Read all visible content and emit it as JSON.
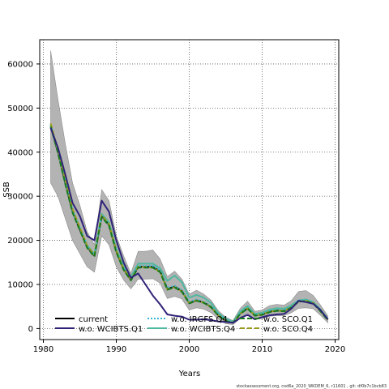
{
  "chart_data": {
    "type": "line",
    "xlabel": "Years",
    "ylabel": "SSB",
    "xlim": [
      1979.5,
      2020.5
    ],
    "ylim": [
      -2500,
      65500
    ],
    "xticks": [
      1980,
      1990,
      2000,
      2010,
      2020
    ],
    "yticks": [
      0,
      10000,
      20000,
      30000,
      40000,
      50000,
      60000
    ],
    "grid": true,
    "grid_style": "dotted",
    "legend_placement": "bottom-left",
    "x": [
      1981,
      1982,
      1983,
      1984,
      1985,
      1986,
      1987,
      1988,
      1989,
      1990,
      1991,
      1992,
      1993,
      1994,
      1995,
      1996,
      1997,
      1998,
      1999,
      2000,
      2001,
      2002,
      2003,
      2004,
      2005,
      2006,
      2007,
      2008,
      2009,
      2010,
      2011,
      2012,
      2013,
      2014,
      2015,
      2016,
      2017,
      2018,
      2019
    ],
    "confidence_band": {
      "upper": [
        63000,
        52000,
        42000,
        33000,
        28000,
        22000,
        19000,
        31500,
        29000,
        21000,
        16500,
        12500,
        17500,
        17500,
        17800,
        15800,
        11800,
        13000,
        11200,
        7800,
        8700,
        7800,
        6400,
        4000,
        2600,
        1800,
        4600,
        6200,
        3900,
        4200,
        5200,
        5500,
        5300,
        6300,
        8400,
        8600,
        7500,
        5300,
        2900
      ],
      "lower": [
        33000,
        30000,
        25000,
        20000,
        17000,
        14000,
        12800,
        21000,
        19000,
        14000,
        11000,
        9000,
        11200,
        11200,
        11300,
        10300,
        6800,
        7300,
        6700,
        4200,
        4700,
        4400,
        3600,
        2100,
        1100,
        900,
        2300,
        3500,
        2100,
        2200,
        2800,
        2900,
        2900,
        3600,
        4600,
        4700,
        4500,
        3000,
        1300
      ]
    },
    "series": [
      {
        "name": "current",
        "color": "#000000",
        "dash": "solid",
        "values": [
          46000,
          40000,
          33000,
          26500,
          22500,
          18500,
          16500,
          25500,
          23500,
          17500,
          13500,
          11000,
          14000,
          14000,
          14000,
          13000,
          9000,
          9500,
          8500,
          5800,
          6400,
          5900,
          4900,
          3000,
          1800,
          1300,
          3400,
          4600,
          3000,
          3200,
          3800,
          4100,
          4000,
          4800,
          6200,
          6300,
          5800,
          4000,
          2000
        ]
      },
      {
        "name": "w.o. WCIBTS.Q1",
        "color": "#2e2378",
        "dash": "solid",
        "values": [
          45500,
          41000,
          35000,
          28500,
          25500,
          21000,
          20000,
          29000,
          26500,
          20000,
          15000,
          11500,
          12500,
          10000,
          7500,
          5500,
          3200,
          2900,
          2700,
          2000,
          2000,
          2100,
          1900,
          1600,
          1500,
          1300,
          2400,
          3100,
          2100,
          2600,
          3000,
          3200,
          3300,
          4500,
          6300,
          6000,
          5600,
          4200,
          2100
        ]
      },
      {
        "name": "w.o. IRGFS.Q4",
        "color": "#35b6d8",
        "dash": "dotted",
        "values": [
          46100,
          40100,
          33200,
          26600,
          22600,
          18600,
          16600,
          25600,
          23600,
          17600,
          13600,
          11200,
          14200,
          14200,
          14200,
          13200,
          9200,
          9700,
          8700,
          6000,
          6600,
          6100,
          5100,
          3200,
          1900,
          1400,
          3500,
          4700,
          3100,
          3300,
          3900,
          4200,
          4100,
          4900,
          6300,
          6400,
          5900,
          4100,
          2100
        ]
      },
      {
        "name": "w.o. WCIBTS.Q4",
        "color": "#4fb8a0",
        "dash": "solid",
        "values": [
          46300,
          40300,
          33500,
          26900,
          22900,
          18900,
          16900,
          26000,
          24100,
          18100,
          14100,
          11700,
          14700,
          14700,
          14700,
          13700,
          10800,
          12000,
          10500,
          7000,
          7600,
          7000,
          5800,
          3500,
          2200,
          1500,
          3900,
          5100,
          3300,
          3600,
          4300,
          4600,
          4500,
          5300,
          6400,
          6600,
          6000,
          4300,
          2200
        ]
      },
      {
        "name": "w.o. SCO.Q1",
        "color": "#1a7a1a",
        "dash": "dashed",
        "values": [
          45800,
          39800,
          32800,
          26300,
          22300,
          18300,
          16300,
          25300,
          23300,
          17300,
          13300,
          10900,
          13800,
          13800,
          13800,
          12800,
          8800,
          9300,
          8300,
          5700,
          6300,
          5800,
          4800,
          2900,
          1700,
          1300,
          3300,
          4500,
          2900,
          3100,
          3700,
          4000,
          3900,
          4700,
          6100,
          6200,
          5700,
          3900,
          1900
        ]
      },
      {
        "name": "w.o. SCO.Q4",
        "color": "#9a9a1a",
        "dash": "dashed",
        "values": [
          46500,
          40500,
          33700,
          27100,
          22900,
          18800,
          16700,
          25700,
          23700,
          17700,
          13600,
          11100,
          14000,
          13900,
          13800,
          12900,
          8900,
          9400,
          8400,
          5800,
          6400,
          5900,
          4900,
          3000,
          1800,
          1300,
          3400,
          4600,
          3000,
          3200,
          3800,
          4100,
          4000,
          4800,
          6200,
          6300,
          5800,
          4000,
          2000
        ]
      }
    ]
  },
  "footer": {
    "text": "stockassessment.org,  cod6a_2020_WKDEM_6,  r11601 ,  git:  df0b7c1bcb83"
  }
}
